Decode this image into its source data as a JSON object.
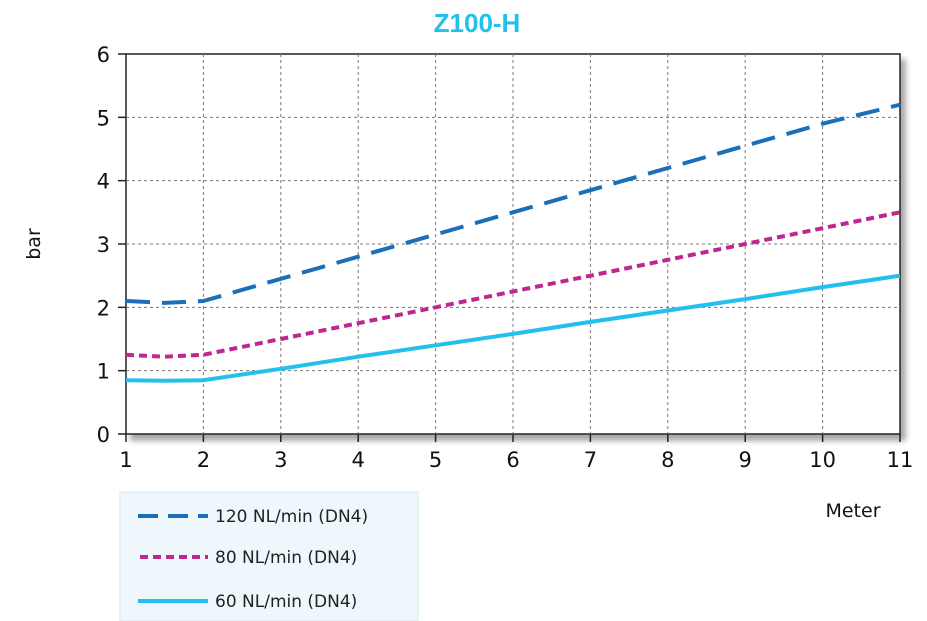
{
  "chart_data": {
    "type": "line",
    "title": "Z100-H",
    "xlabel": "Meter",
    "ylabel": "bar",
    "xlim": [
      1,
      11
    ],
    "ylim": [
      0,
      6
    ],
    "x_ticks": [
      1,
      2,
      3,
      4,
      5,
      6,
      7,
      8,
      9,
      10,
      11
    ],
    "y_ticks": [
      0,
      1,
      2,
      3,
      4,
      5,
      6
    ],
    "grid": true,
    "legend_position": "bottom-left",
    "series": [
      {
        "name": "120 NL/min (DN4)",
        "color": "#1a6fb8",
        "style": "long-dash",
        "x": [
          1,
          1.5,
          2,
          3,
          4,
          5,
          6,
          7,
          8,
          9,
          10,
          11
        ],
        "y": [
          2.1,
          2.07,
          2.1,
          2.45,
          2.8,
          3.15,
          3.5,
          3.85,
          4.2,
          4.55,
          4.9,
          5.2
        ]
      },
      {
        "name": "80 NL/min (DN4)",
        "color": "#c0268f",
        "style": "short-dash",
        "x": [
          1,
          1.5,
          2,
          3,
          4,
          5,
          6,
          7,
          8,
          9,
          10,
          11
        ],
        "y": [
          1.25,
          1.22,
          1.25,
          1.5,
          1.75,
          2.0,
          2.25,
          2.5,
          2.75,
          3.0,
          3.25,
          3.5
        ]
      },
      {
        "name": "60 NL/min (DN4)",
        "color": "#22c0ec",
        "style": "solid",
        "x": [
          1,
          1.5,
          2,
          3,
          4,
          5,
          6,
          7,
          8,
          9,
          10,
          11
        ],
        "y": [
          0.85,
          0.84,
          0.85,
          1.03,
          1.22,
          1.4,
          1.58,
          1.77,
          1.95,
          2.13,
          2.32,
          2.5
        ]
      }
    ]
  },
  "colors": {
    "title": "#22c0ec",
    "legend_background": "#eef8fc",
    "grid": "#777777"
  }
}
